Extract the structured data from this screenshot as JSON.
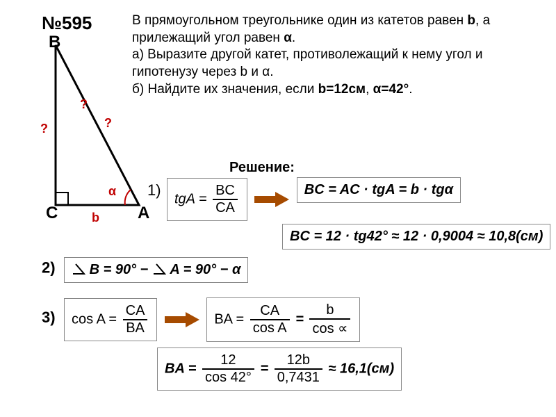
{
  "problem": {
    "number": "№595",
    "text_html": "В прямоугольном треугольнике один из катетов равен <b>b</b>, а прилежащий угол равен <b>α</b>.<br>а) Выразите другой катет, противолежащий к нему угол и гипотенузу через b и α.<br>б) Найдите их значения, если <b>b=12см</b>, <b>α=42°</b>."
  },
  "triangle": {
    "vertices": {
      "B": "B",
      "C": "C",
      "A": "A"
    },
    "side_b": "b",
    "angle": "α",
    "qmark": "?",
    "colors": {
      "line": "#000000",
      "accent": "#c00000"
    }
  },
  "solution_label": "Решение:",
  "steps": {
    "one": {
      "num": "1)",
      "eq1_lhs": "tgA =",
      "eq1_num": "BC",
      "eq1_den": "CA",
      "eq2": "BC = AC · tgA = b · tgα",
      "eq3": "BC = 12 · tg42° ≈ 12 · 0,9004 ≈ 10,8(см)"
    },
    "two": {
      "num": "2)",
      "eq": "B = 90° − ",
      "eq_rhs": "A = 90° − α"
    },
    "three": {
      "num": "3)",
      "eq1_lhs": "cos A =",
      "eq1_num": "CA",
      "eq1_den": "BA",
      "eq2_lhs": "BA =",
      "eq2a_num": "CA",
      "eq2a_den": "cos A",
      "eq2b_num": "b",
      "eq2b_den": "cos ∝",
      "eq3_lhs": "BA =",
      "eq3a_num": "12",
      "eq3a_den": "cos 42°",
      "eq3b_num": "12b",
      "eq3b_den": "0,7431",
      "eq3_tail": " ≈ 16,1(см)"
    }
  },
  "style": {
    "arrow_fill": "#a64b00",
    "box_border": "#888888",
    "text_color": "#000000",
    "red": "#c00000",
    "bg": "#ffffff"
  }
}
